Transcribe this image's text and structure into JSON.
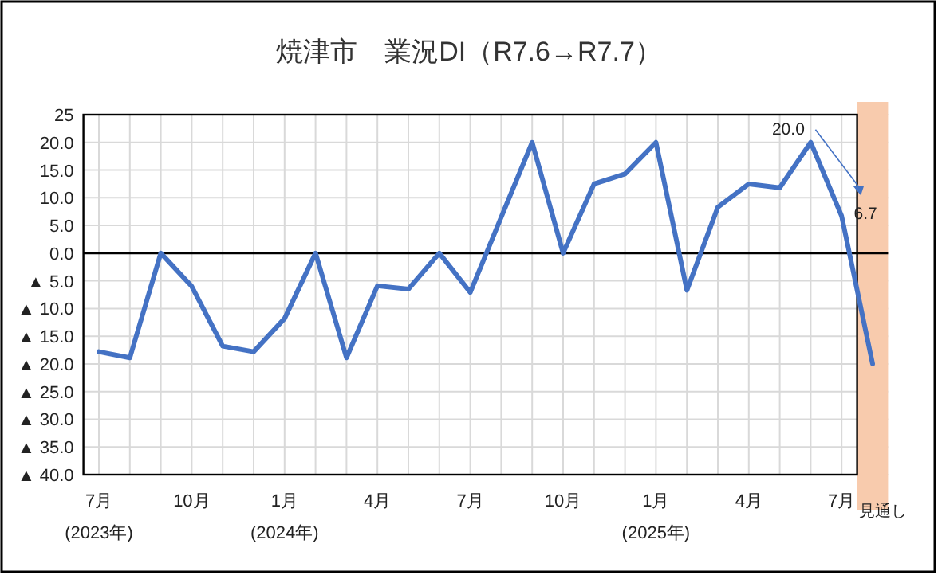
{
  "chart_data": {
    "type": "line",
    "title": "焼津市　業況DI（R7.6→R7.7）",
    "categories": [
      "7月\n(2023年)",
      null,
      null,
      "10月",
      null,
      null,
      "1月\n(2024年)",
      null,
      null,
      "4月",
      null,
      null,
      "7月",
      null,
      null,
      "10月",
      null,
      null,
      "1月\n(2025年)",
      null,
      null,
      "4月",
      null,
      null,
      "7月",
      "見通し"
    ],
    "series": [
      {
        "color": "#4472c4",
        "values": [
          -17.8,
          -18.9,
          0,
          -6,
          -16.8,
          -17.8,
          -11.8,
          0,
          -18.9,
          -5.9,
          -6.5,
          0,
          -7.1,
          6.5,
          20,
          0,
          12.5,
          14.3,
          20,
          -6.7,
          8.3,
          12.5,
          11.8,
          20,
          6.7,
          -20
        ],
        "value_labels": [
          null,
          null,
          null,
          null,
          null,
          null,
          null,
          null,
          null,
          null,
          null,
          null,
          null,
          null,
          null,
          null,
          null,
          null,
          null,
          null,
          null,
          null,
          null,
          "20.0",
          "6.7",
          null
        ]
      }
    ],
    "ylim": [
      -40,
      25
    ],
    "yticks": [
      25,
      {
        "value": 20,
        "label": "20.0"
      },
      {
        "value": 15,
        "label": "15.0"
      },
      {
        "value": 10,
        "label": "10.0"
      },
      {
        "value": 5,
        "label": "5.0"
      },
      {
        "value": 0,
        "label": "0.0"
      },
      {
        "value": -5,
        "label": "▲ 5.0"
      },
      {
        "value": -10,
        "label": "▲ 10.0"
      },
      {
        "value": -15,
        "label": "▲ 15.0"
      },
      {
        "value": -20,
        "label": "▲ 20.0"
      },
      {
        "value": -25,
        "label": "▲ 25.0"
      },
      {
        "value": -30,
        "label": "▲ 30.0"
      },
      {
        "value": -35,
        "label": "▲ 35.0"
      },
      {
        "value": -40,
        "label": "▲ 40.0"
      }
    ],
    "ref_lines": [
      {
        "axis": "y",
        "value": 0,
        "label": null,
        "color": "#000000"
      }
    ],
    "bands": [
      {
        "axis": "x",
        "from": "見通し",
        "to": "見通し",
        "label": null,
        "color": "#f8cbad"
      }
    ],
    "grid": true,
    "marker": "none",
    "line_style": "solid"
  }
}
